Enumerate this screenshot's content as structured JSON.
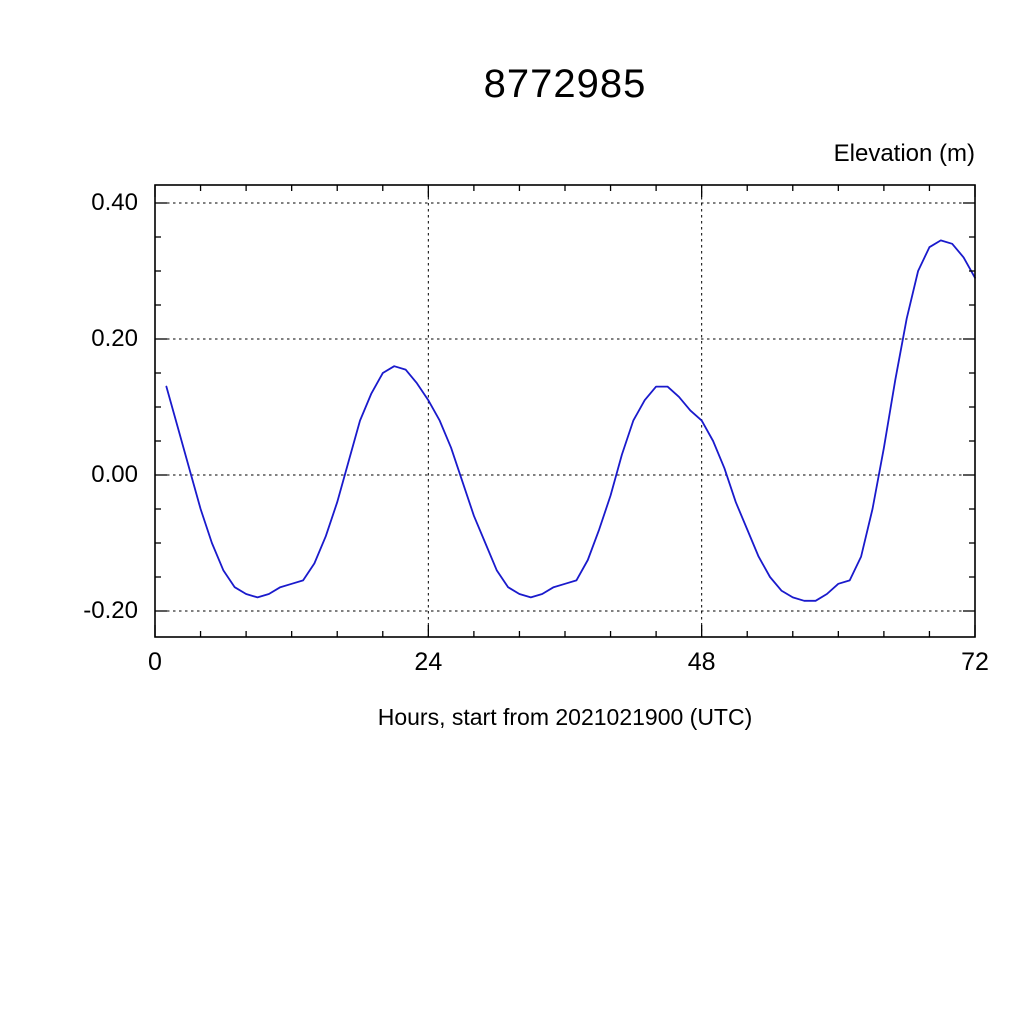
{
  "chart_data": {
    "type": "line",
    "title": "8772985",
    "ylabel": "Elevation (m)",
    "xlabel": "Hours, start from 2021021900 (UTC)",
    "xlim": [
      0,
      72
    ],
    "ylim": [
      -0.2,
      0.4
    ],
    "xticks": [
      0,
      24,
      48,
      72
    ],
    "xtick_labels": [
      "0",
      "24",
      "48",
      "72"
    ],
    "ytick_values": [
      -0.2,
      0.0,
      0.2,
      0.4
    ],
    "ytick_labels": [
      "-0.20",
      "0.00",
      "0.20",
      "0.40"
    ],
    "x_minor_step": 4,
    "y_minor_step": 0.05,
    "grid": true,
    "grid_x_values": [
      24,
      48
    ],
    "line_color": "#1a1acc",
    "frame_color": "#000000",
    "series": [
      {
        "name": "elevation",
        "x": [
          1,
          2,
          3,
          4,
          5,
          6,
          7,
          8,
          9,
          10,
          11,
          12,
          13,
          14,
          15,
          16,
          17,
          18,
          19,
          20,
          21,
          22,
          23,
          24,
          25,
          26,
          27,
          28,
          29,
          30,
          31,
          32,
          33,
          34,
          35,
          36,
          37,
          38,
          39,
          40,
          41,
          42,
          43,
          44,
          45,
          46,
          47,
          48,
          49,
          50,
          51,
          52,
          53,
          54,
          55,
          56,
          57,
          58,
          59,
          60,
          61,
          62,
          63,
          64,
          65,
          66,
          67,
          68,
          69,
          70,
          71,
          72
        ],
        "y": [
          0.13,
          0.07,
          0.01,
          -0.05,
          -0.1,
          -0.14,
          -0.165,
          -0.175,
          -0.18,
          -0.175,
          -0.165,
          -0.16,
          -0.155,
          -0.13,
          -0.09,
          -0.04,
          0.02,
          0.08,
          0.12,
          0.15,
          0.16,
          0.155,
          0.135,
          0.11,
          0.08,
          0.04,
          -0.01,
          -0.06,
          -0.1,
          -0.14,
          -0.165,
          -0.175,
          -0.18,
          -0.175,
          -0.165,
          -0.16,
          -0.155,
          -0.125,
          -0.08,
          -0.03,
          0.03,
          0.08,
          0.11,
          0.13,
          0.13,
          0.115,
          0.095,
          0.08,
          0.05,
          0.01,
          -0.04,
          -0.08,
          -0.12,
          -0.15,
          -0.17,
          -0.18,
          -0.185,
          -0.185,
          -0.175,
          -0.16,
          -0.155,
          -0.12,
          -0.05,
          0.04,
          0.14,
          0.23,
          0.3,
          0.335,
          0.345,
          0.34,
          0.32,
          0.29
        ]
      }
    ]
  }
}
